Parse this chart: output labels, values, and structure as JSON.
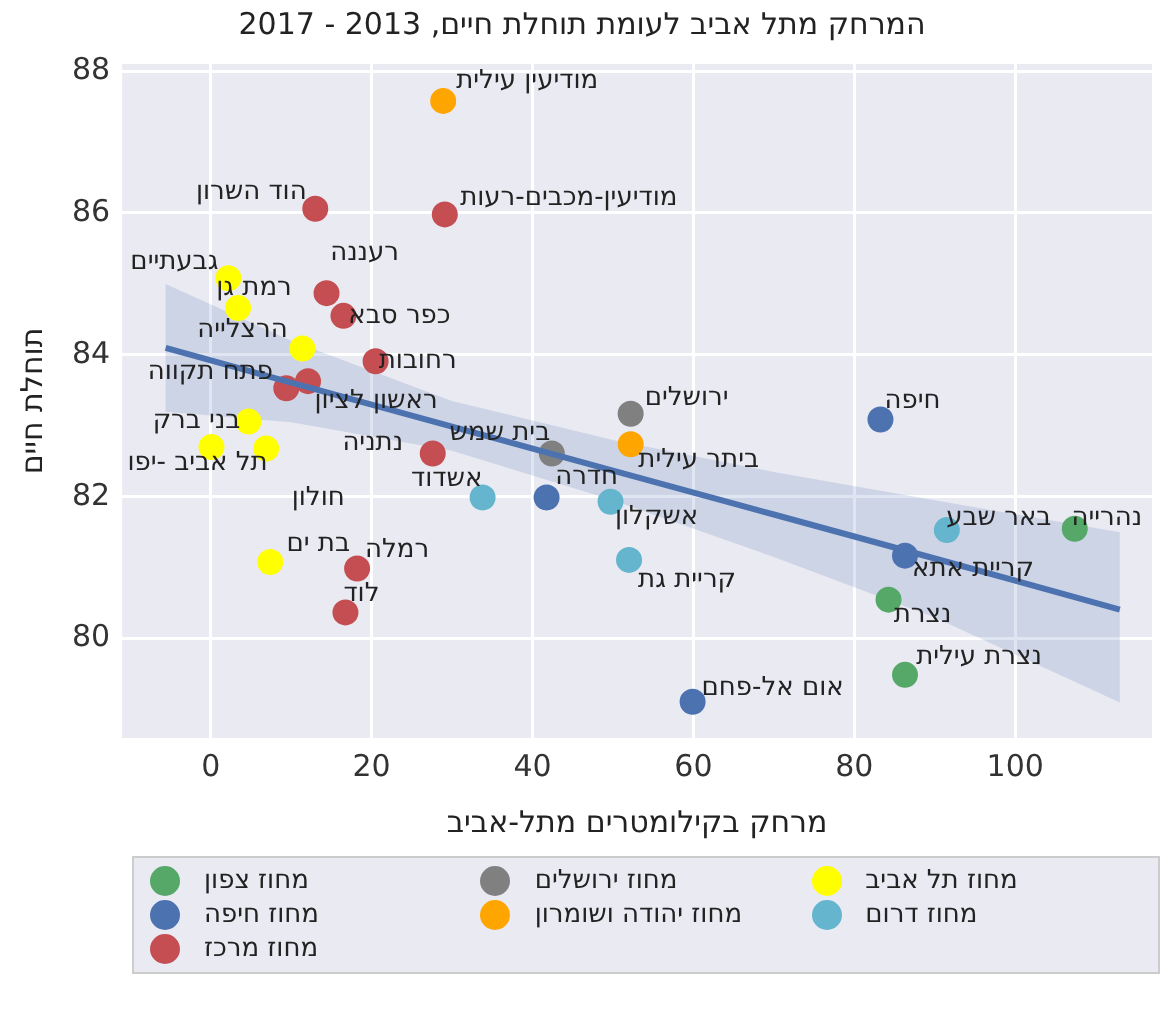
{
  "chart_data": {
    "type": "scatter",
    "title": "המרחק מתל אביב לעומת תוחלת חיים, 2013 - 2017",
    "xlabel": "מרחק בקילומטרים מתל-אביב",
    "ylabel": "תוחלת חיים",
    "xlim": [
      -11,
      117
    ],
    "ylim": [
      78.6,
      88.1
    ],
    "xticks": [
      0,
      20,
      40,
      60,
      80,
      100
    ],
    "yticks": [
      80,
      82,
      84,
      86,
      88
    ],
    "grid": true,
    "legend": "bottom",
    "marker": "circle",
    "series": [
      {
        "name": "מחוז צפון",
        "color": "#55a868",
        "x": [
          107.4,
          84.25,
          86.3
        ],
        "values": [
          81.55,
          80.55,
          79.49
        ]
      },
      {
        "name": "מחוז חיפה",
        "color": "#4c72b0",
        "x": [
          83.25,
          86.3,
          41.75,
          59.9
        ],
        "values": [
          83.09,
          81.17,
          81.99,
          79.11
        ]
      },
      {
        "name": "מחוז מרכז",
        "color": "#c44e52",
        "x": [
          13,
          29.1,
          14.4,
          16.5,
          20.5,
          12.1,
          9.4,
          27.6,
          18.2,
          16.75
        ],
        "values": [
          86.06,
          85.98,
          84.87,
          84.55,
          83.91,
          83.63,
          83.53,
          82.61,
          80.99,
          80.37
        ]
      },
      {
        "name": "מחוז ירושלים",
        "color": "#808080",
        "x": [
          52.2,
          42.4
        ],
        "values": [
          83.17,
          82.61
        ]
      },
      {
        "name": "מחוז יהודה ושומרון",
        "color": "#ffa500",
        "x": [
          28.9,
          52.2
        ],
        "values": [
          87.58,
          82.74
        ]
      },
      {
        "name": "מחוז תל אביב",
        "color": "#ffff00",
        "x": [
          2.2,
          3.4,
          11.4,
          4.7,
          0.1,
          6.9,
          7.4
        ],
        "values": [
          85.08,
          84.66,
          84.09,
          83.06,
          82.7,
          82.68,
          81.08
        ]
      },
      {
        "name": "מחוז דרום",
        "color": "#64b5cd",
        "x": [
          33.8,
          49.7,
          52,
          91.5
        ],
        "values": [
          81.99,
          81.93,
          81.11,
          81.53
        ]
      },
      {
        "type": "line",
        "color": "#4c72b0",
        "line_style": "solid",
        "marker": "none",
        "x": [
          -5.6,
          10,
          30,
          50,
          70,
          90,
          113
        ],
        "values": [
          84.1,
          83.61,
          82.99,
          82.37,
          81.75,
          81.13,
          80.41
        ],
        "lower": [
          83.2,
          83.05,
          82.65,
          81.95,
          81.15,
          80.3,
          79.1
        ],
        "upper": [
          85.0,
          84.2,
          83.35,
          82.8,
          82.35,
          81.95,
          81.5
        ]
      }
    ],
    "annotations": [
      {
        "text": "מודיעין עילית",
        "x": 28.9,
        "y": 87.58
      },
      {
        "text": "מודיעין-מכבים-רעות",
        "x": 29.1,
        "y": 85.98
      },
      {
        "text": "הוד השרון",
        "x": 13,
        "y": 86.06
      },
      {
        "text": "רעננה",
        "x": 14.4,
        "y": 84.87
      },
      {
        "text": "גבעתיים",
        "x": 2.2,
        "y": 85.08
      },
      {
        "text": "רמת גן",
        "x": 3.4,
        "y": 84.66
      },
      {
        "text": "כפר סבא",
        "x": 16.5,
        "y": 84.55
      },
      {
        "text": "הרצלייה",
        "x": 11.4,
        "y": 84.09
      },
      {
        "text": "רחובות",
        "x": 20.5,
        "y": 83.91
      },
      {
        "text": "פתח תקווה",
        "x": 9.4,
        "y": 83.53
      },
      {
        "text": "ראשון לציון",
        "x": 12.1,
        "y": 83.63
      },
      {
        "text": "בני ברק",
        "x": 4.7,
        "y": 83.06
      },
      {
        "text": "תל אביב -יפו",
        "x": 0.1,
        "y": 82.7
      },
      {
        "text": "נתניה",
        "x": 27.6,
        "y": 82.61
      },
      {
        "text": "בית שמש",
        "x": 42.4,
        "y": 82.61
      },
      {
        "text": "חולון",
        "x": 6.9,
        "y": 82.68
      },
      {
        "text": "אשדוד",
        "x": 33.8,
        "y": 81.99
      },
      {
        "text": "חדרה",
        "x": 41.75,
        "y": 81.99
      },
      {
        "text": "ירושלים",
        "x": 52.2,
        "y": 83.17
      },
      {
        "text": "ביתר עילית",
        "x": 52.2,
        "y": 82.74
      },
      {
        "text": "אשקלון",
        "x": 49.7,
        "y": 81.93
      },
      {
        "text": "קריית גת",
        "x": 52,
        "y": 81.11
      },
      {
        "text": "בת ים",
        "x": 7.4,
        "y": 81.08
      },
      {
        "text": "רמלה",
        "x": 18.2,
        "y": 80.99
      },
      {
        "text": "לוד",
        "x": 16.75,
        "y": 80.37
      },
      {
        "text": "חיפה",
        "x": 83.25,
        "y": 83.09
      },
      {
        "text": "באר שבע",
        "x": 91.5,
        "y": 81.53
      },
      {
        "text": "נהרייה",
        "x": 107.4,
        "y": 81.55
      },
      {
        "text": "קריית אתא",
        "x": 86.3,
        "y": 81.17
      },
      {
        "text": "נצרת",
        "x": 84.25,
        "y": 80.55
      },
      {
        "text": "נצרת עילית",
        "x": 86.3,
        "y": 79.49
      },
      {
        "text": "אום אל-פחם",
        "x": 59.9,
        "y": 79.11
      }
    ]
  }
}
